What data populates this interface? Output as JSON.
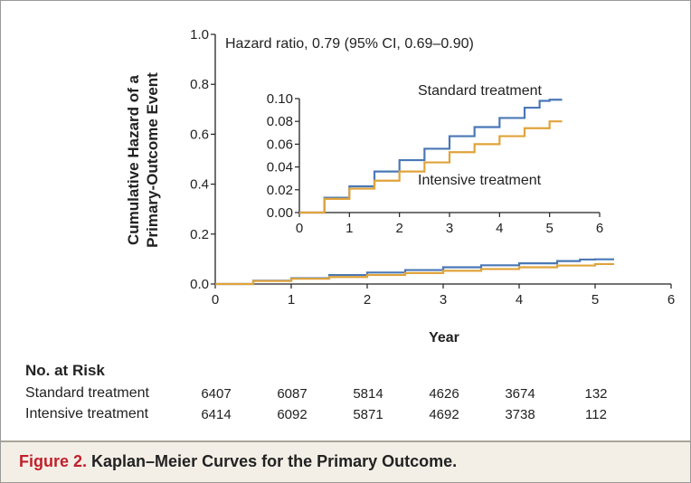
{
  "chart_data": [
    {
      "type": "line",
      "title": "",
      "xlabel": "Year",
      "ylabel": "Cumulative Hazard of a Primary-Outcome Event",
      "xlim": [
        0,
        6
      ],
      "ylim": [
        0,
        1.0
      ],
      "x_ticks": [
        "0",
        "1",
        "2",
        "3",
        "4",
        "5",
        "6"
      ],
      "y_ticks": [
        "0.0",
        "0.2",
        "0.4",
        "0.6",
        "0.8",
        "1.0"
      ],
      "annotation": "Hazard ratio, 0.79 (95% CI, 0.69–0.90)",
      "grid": false,
      "series": [
        {
          "name": "Standard treatment",
          "color": "#4a78b6",
          "x": [
            0,
            0.5,
            1.0,
            1.5,
            2.0,
            2.5,
            3.0,
            3.5,
            4.0,
            4.5,
            4.8,
            5.0,
            5.25
          ],
          "y": [
            0,
            0.013,
            0.023,
            0.036,
            0.046,
            0.056,
            0.067,
            0.075,
            0.083,
            0.092,
            0.098,
            0.099,
            0.099
          ]
        },
        {
          "name": "Intensive treatment",
          "color": "#e0a33a",
          "x": [
            0,
            0.5,
            1.0,
            1.5,
            2.0,
            2.5,
            3.0,
            3.5,
            4.0,
            4.5,
            5.0,
            5.25
          ],
          "y": [
            0,
            0.012,
            0.021,
            0.028,
            0.036,
            0.044,
            0.053,
            0.06,
            0.067,
            0.074,
            0.08,
            0.08
          ]
        }
      ]
    },
    {
      "type": "line",
      "title": "",
      "xlim": [
        0,
        6
      ],
      "ylim": [
        0,
        0.1
      ],
      "x_ticks": [
        "0",
        "1",
        "2",
        "3",
        "4",
        "5",
        "6"
      ],
      "y_ticks": [
        "0.00",
        "0.02",
        "0.04",
        "0.06",
        "0.08",
        "0.10"
      ],
      "series": [
        {
          "name": "Standard treatment",
          "color": "#4a78b6",
          "x": [
            0,
            0.5,
            1.0,
            1.5,
            2.0,
            2.5,
            3.0,
            3.5,
            4.0,
            4.5,
            4.8,
            5.0,
            5.25
          ],
          "y": [
            0,
            0.013,
            0.023,
            0.036,
            0.046,
            0.056,
            0.067,
            0.075,
            0.083,
            0.092,
            0.098,
            0.099,
            0.099
          ]
        },
        {
          "name": "Intensive treatment",
          "color": "#e0a33a",
          "x": [
            0,
            0.5,
            1.0,
            1.5,
            2.0,
            2.5,
            3.0,
            3.5,
            4.0,
            4.5,
            5.0,
            5.25
          ],
          "y": [
            0,
            0.012,
            0.021,
            0.028,
            0.036,
            0.044,
            0.053,
            0.06,
            0.067,
            0.074,
            0.08,
            0.08
          ]
        }
      ]
    }
  ],
  "risk_table": {
    "heading": "No. at Risk",
    "rows": [
      {
        "label": "Standard treatment",
        "values": [
          "6407",
          "6087",
          "5814",
          "4626",
          "3674",
          "132"
        ]
      },
      {
        "label": "Intensive treatment",
        "values": [
          "6414",
          "6092",
          "5871",
          "4692",
          "3738",
          "112"
        ]
      }
    ]
  },
  "caption": {
    "figure_label": "Figure 2.",
    "text": "Kaplan–Meier Curves for the Primary Outcome."
  }
}
